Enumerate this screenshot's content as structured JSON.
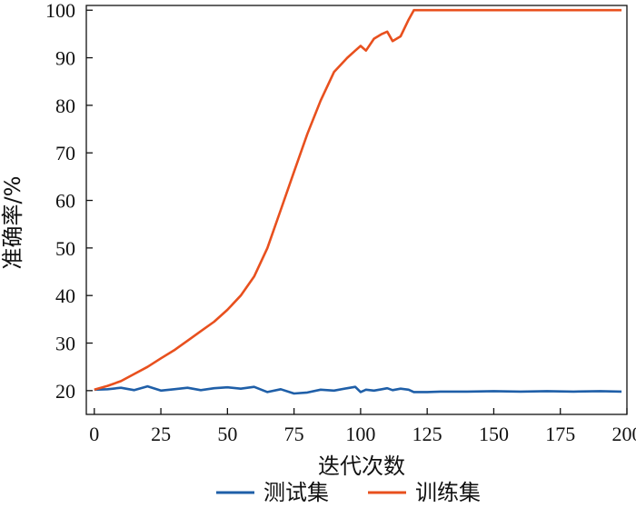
{
  "chart_data": {
    "type": "line",
    "title": "",
    "xlabel": "迭代次数",
    "ylabel": "准确率/%",
    "xlim": [
      -3,
      200
    ],
    "ylim": [
      15,
      101
    ],
    "x_ticks": [
      0,
      25,
      50,
      75,
      100,
      125,
      150,
      175,
      200
    ],
    "y_ticks": [
      20,
      30,
      40,
      50,
      60,
      70,
      80,
      90,
      100
    ],
    "grid": false,
    "legend_position": "bottom-center",
    "x": [
      0,
      5,
      10,
      15,
      20,
      25,
      30,
      35,
      40,
      45,
      50,
      55,
      60,
      65,
      70,
      75,
      80,
      85,
      90,
      95,
      98,
      100,
      102,
      105,
      108,
      110,
      112,
      115,
      118,
      120,
      125,
      130,
      140,
      150,
      160,
      170,
      180,
      190,
      198
    ],
    "series": [
      {
        "name": "测试集",
        "color": "#1f5fa8",
        "values": [
          20.2,
          20.3,
          20.6,
          20.1,
          20.9,
          20.0,
          20.3,
          20.6,
          20.1,
          20.5,
          20.7,
          20.4,
          20.8,
          19.7,
          20.3,
          19.4,
          19.6,
          20.2,
          20.0,
          20.5,
          20.8,
          19.7,
          20.2,
          20.0,
          20.3,
          20.5,
          20.1,
          20.4,
          20.2,
          19.7,
          19.7,
          19.8,
          19.8,
          19.9,
          19.8,
          19.9,
          19.8,
          19.9,
          19.8
        ]
      },
      {
        "name": "训练集",
        "color": "#e8501e",
        "values": [
          20.2,
          21.0,
          22.0,
          23.5,
          25.0,
          26.8,
          28.5,
          30.5,
          32.5,
          34.5,
          37.0,
          40.0,
          44.0,
          50.0,
          58.0,
          66.0,
          74.0,
          81.0,
          87.0,
          90.0,
          91.5,
          92.5,
          91.5,
          94.0,
          95.0,
          95.5,
          93.5,
          94.5,
          98.0,
          100.0,
          100.0,
          100.0,
          100.0,
          100.0,
          100.0,
          100.0,
          100.0,
          100.0,
          100.0
        ]
      }
    ]
  }
}
